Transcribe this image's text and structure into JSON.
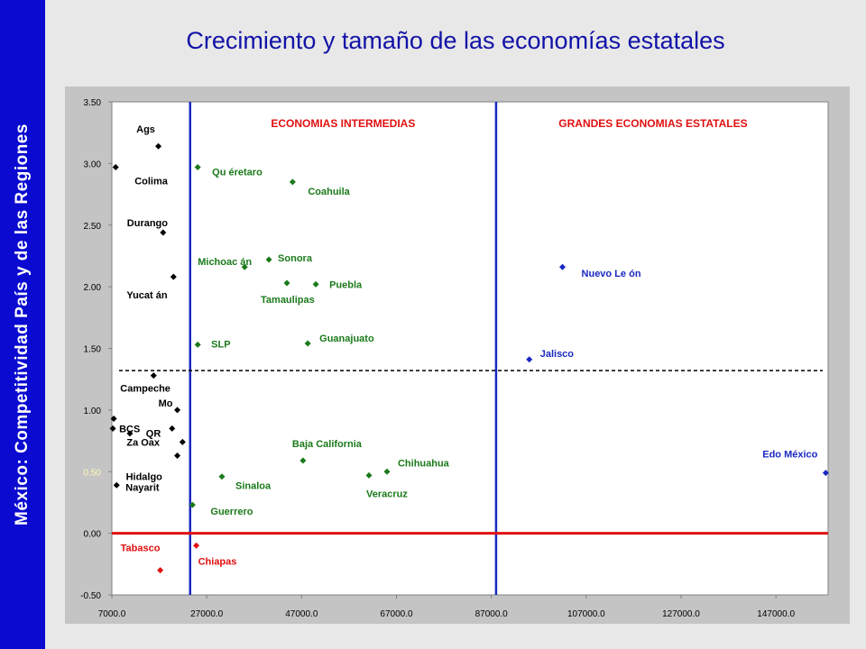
{
  "sidebar": {
    "text": "México: Competitividad  País y de las  Regiones"
  },
  "colors": {
    "sidebar": "#0a0ad0",
    "title": "#1212a8",
    "black": "#000000",
    "green": "#1a7a1a",
    "blue": "#1a28c0",
    "red": "#e01010",
    "yellow": "#fffbb0"
  },
  "chart_data": {
    "type": "scatter",
    "title": "Crecimiento y tamaño de las economías estatales",
    "xlabel": "",
    "ylabel": "",
    "xlim": [
      7000,
      158000
    ],
    "ylim": [
      -0.5,
      3.5
    ],
    "xticks": [
      "7000.0",
      "27000.0",
      "47000.0",
      "67000.0",
      "87000.0",
      "107000.0",
      "127000.0",
      "147000.0"
    ],
    "yticks": [
      "3.50",
      "3.00",
      "2.50",
      "2.00",
      "1.50",
      "1.00",
      "0.50",
      "0.00",
      "-0.50"
    ],
    "grid": false,
    "reference_lines": {
      "vertical": [
        23500,
        88000
      ],
      "horizontal_dashed": 1.32,
      "horizontal_red": 0.0
    },
    "regions": [
      "ECONOMIAS INTERMEDIAS",
      "GRANDES ECONOMIAS ESTATALES"
    ],
    "points": [
      {
        "label": "Ags",
        "x": 16800,
        "y": 3.14,
        "group": "black"
      },
      {
        "label": "Colima",
        "x": 7800,
        "y": 2.97,
        "group": "black"
      },
      {
        "label": "Durango",
        "x": 17800,
        "y": 2.44,
        "group": "black"
      },
      {
        "label": "Yucat án",
        "x": 20000,
        "y": 2.08,
        "group": "black"
      },
      {
        "label": "Campeche",
        "x": 15800,
        "y": 1.28,
        "group": "black"
      },
      {
        "label": "Mo",
        "x": 20800,
        "y": 1.0,
        "group": "black"
      },
      {
        "label": "BCS",
        "x": 7400,
        "y": 0.93,
        "group": "black"
      },
      {
        "label": "",
        "x": 7200,
        "y": 0.85,
        "group": "black"
      },
      {
        "label": "QR",
        "x": 19700,
        "y": 0.85,
        "group": "black"
      },
      {
        "label": "",
        "x": 10800,
        "y": 0.81,
        "group": "black"
      },
      {
        "label": "Za  Oax",
        "x": 21900,
        "y": 0.74,
        "group": "black"
      },
      {
        "label": "Hidalgo",
        "x": 20800,
        "y": 0.63,
        "group": "black"
      },
      {
        "label": "Nayarit",
        "x": 8000,
        "y": 0.39,
        "group": "black"
      },
      {
        "label": "Qu éretaro",
        "x": 25100,
        "y": 2.97,
        "group": "green"
      },
      {
        "label": "Coahuila",
        "x": 45100,
        "y": 2.85,
        "group": "green"
      },
      {
        "label": "Michoac án",
        "x": 35000,
        "y": 2.16,
        "group": "green"
      },
      {
        "label": "Sonora",
        "x": 40100,
        "y": 2.22,
        "group": "green"
      },
      {
        "label": "Tamaulipas",
        "x": 43900,
        "y": 2.03,
        "group": "green"
      },
      {
        "label": "Puebla",
        "x": 50000,
        "y": 2.02,
        "group": "green"
      },
      {
        "label": "SLP",
        "x": 25100,
        "y": 1.53,
        "group": "green"
      },
      {
        "label": "Guanajuato",
        "x": 48300,
        "y": 1.54,
        "group": "green"
      },
      {
        "label": "Baja California",
        "x": 47300,
        "y": 0.59,
        "group": "green"
      },
      {
        "label": "Chihuahua",
        "x": 65000,
        "y": 0.5,
        "group": "green"
      },
      {
        "label": "Sinaloa",
        "x": 30200,
        "y": 0.46,
        "group": "green"
      },
      {
        "label": "Veracruz",
        "x": 61200,
        "y": 0.47,
        "group": "green"
      },
      {
        "label": "Guerrero",
        "x": 24000,
        "y": 0.23,
        "group": "green"
      },
      {
        "label": "Nuevo Le ón",
        "x": 102000,
        "y": 2.16,
        "group": "blue"
      },
      {
        "label": "Jalisco",
        "x": 95000,
        "y": 1.41,
        "group": "blue"
      },
      {
        "label": "Edo México",
        "x": 157500,
        "y": 0.49,
        "group": "blue"
      },
      {
        "label": "Chiapas",
        "x": 24800,
        "y": -0.1,
        "group": "red"
      },
      {
        "label": "Tabasco",
        "x": 17200,
        "y": -0.3,
        "group": "red"
      }
    ]
  }
}
